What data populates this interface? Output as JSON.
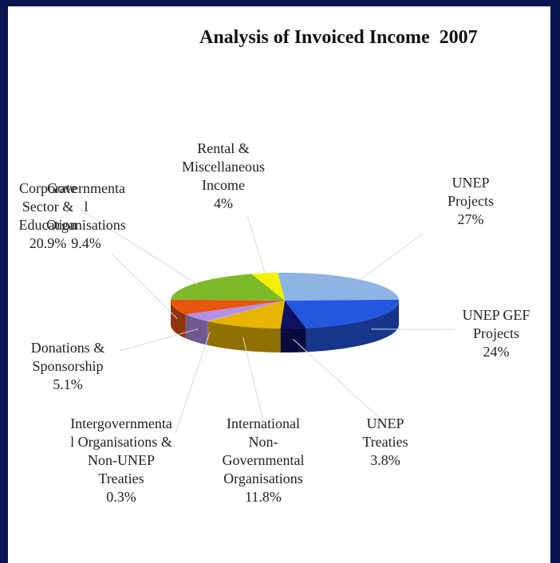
{
  "chart_data": {
    "type": "pie3d",
    "title": "Analysis of Invoiced Income  2007",
    "categories": [
      "UNEP Projects",
      "UNEP GEF Projects",
      "UNEP Treaties",
      "International Non-Governmental Organisations",
      "Intergovernmental Organisations & Non-UNEP Treaties",
      "Donations & Sponsorship",
      "Governmental Organisations",
      "Corporate Sector & Education",
      "Rental & Miscellaneous Income"
    ],
    "values": [
      27,
      24,
      3.8,
      11.8,
      0.3,
      5.1,
      9.4,
      20.9,
      4
    ],
    "value_labels": [
      "27%",
      "24%",
      "3.8%",
      "11.8%",
      "0.3%",
      "5.1%",
      "9.4%",
      "20.9%",
      "4%"
    ],
    "colors": [
      "#8db4e2",
      "#2457e0",
      "#0b1264",
      "#e8b400",
      "#c8a0f0",
      "#b490e6",
      "#e8560e",
      "#7dba2a",
      "#f4f000"
    ]
  }
}
